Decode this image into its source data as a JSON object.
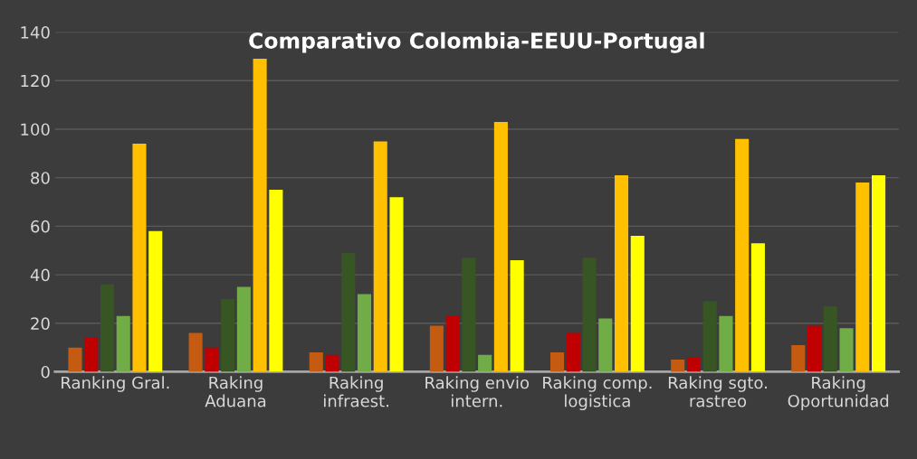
{
  "chart_data": {
    "type": "bar",
    "title": "Comparativo Colombia-EEUU-Portugal",
    "categories": [
      "Ranking Gral.",
      "Raking\nAduana",
      "Raking\ninfraest.",
      "Raking envio\nintern.",
      "Raking comp.\nlogistica",
      "Raking sgto.\nrastreo",
      "Raking\nOportunidad"
    ],
    "series": [
      {
        "color": "#c55a11",
        "values": [
          10,
          16,
          8,
          19,
          8,
          5,
          11
        ]
      },
      {
        "color": "#c00000",
        "values": [
          14,
          10,
          7,
          23,
          16,
          6,
          19
        ]
      },
      {
        "color": "#375623",
        "values": [
          36,
          30,
          49,
          47,
          47,
          29,
          27
        ]
      },
      {
        "color": "#70ad47",
        "values": [
          23,
          35,
          32,
          7,
          22,
          23,
          18
        ]
      },
      {
        "color": "#ffc000",
        "values": [
          94,
          129,
          95,
          103,
          81,
          96,
          78
        ]
      },
      {
        "color": "#ffff00",
        "values": [
          58,
          75,
          72,
          46,
          56,
          53,
          81
        ]
      }
    ],
    "ylim": [
      0,
      140
    ],
    "yticks": [
      0,
      20,
      40,
      60,
      80,
      100,
      120,
      140
    ],
    "grid": "y",
    "legend": false
  }
}
